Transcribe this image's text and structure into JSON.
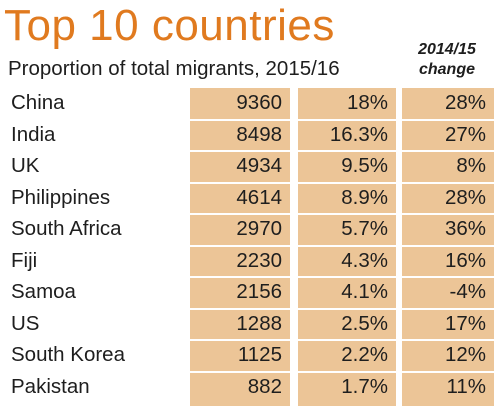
{
  "title": "Top 10 countries",
  "subtitle": "Proportion of total migrants, 2015/16",
  "change_header": [
    "2014/15",
    "change"
  ],
  "colors": {
    "title": "#e07a1f",
    "column_fill": "#ecc597",
    "text": "#1e1e1e"
  },
  "chart_data": {
    "type": "table",
    "title": "Top 10 countries",
    "subtitle": "Proportion of total migrants, 2015/16",
    "columns": [
      "",
      "",
      "",
      "2014/15 change"
    ],
    "rows": [
      {
        "country": "China",
        "migrants": "9360",
        "share": "18%",
        "change": "28%"
      },
      {
        "country": "India",
        "migrants": "8498",
        "share": "16.3%",
        "change": "27%"
      },
      {
        "country": "UK",
        "migrants": "4934",
        "share": "9.5%",
        "change": "8%"
      },
      {
        "country": "Philippines",
        "migrants": "4614",
        "share": "8.9%",
        "change": "28%"
      },
      {
        "country": "South Africa",
        "migrants": "2970",
        "share": "5.7%",
        "change": "36%"
      },
      {
        "country": "Fiji",
        "migrants": "2230",
        "share": "4.3%",
        "change": "16%"
      },
      {
        "country": "Samoa",
        "migrants": "2156",
        "share": "4.1%",
        "change": "-4%"
      },
      {
        "country": "US",
        "migrants": "1288",
        "share": "2.5%",
        "change": "17%"
      },
      {
        "country": "South Korea",
        "migrants": "1125",
        "share": "2.2%",
        "change": "12%"
      },
      {
        "country": "Pakistan",
        "migrants": "882",
        "share": "1.7%",
        "change": "11%"
      }
    ]
  }
}
